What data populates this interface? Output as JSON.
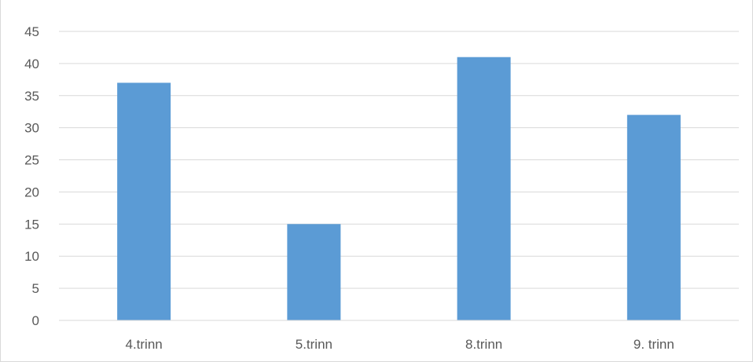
{
  "chart_data": {
    "type": "bar",
    "title": "",
    "xlabel": "",
    "ylabel": "",
    "categories": [
      "4.trinn",
      "5.trinn",
      "8.trinn",
      "9. trinn"
    ],
    "values": [
      37,
      15,
      41,
      32
    ],
    "ylim": [
      0,
      45
    ],
    "yticks": [
      0,
      5,
      10,
      15,
      20,
      25,
      30,
      35,
      40,
      45
    ],
    "grid": true,
    "legend": "none",
    "bar_color": "#5b9bd5",
    "grid_color": "#d9d9d9",
    "tick_label_color": "#595959"
  }
}
